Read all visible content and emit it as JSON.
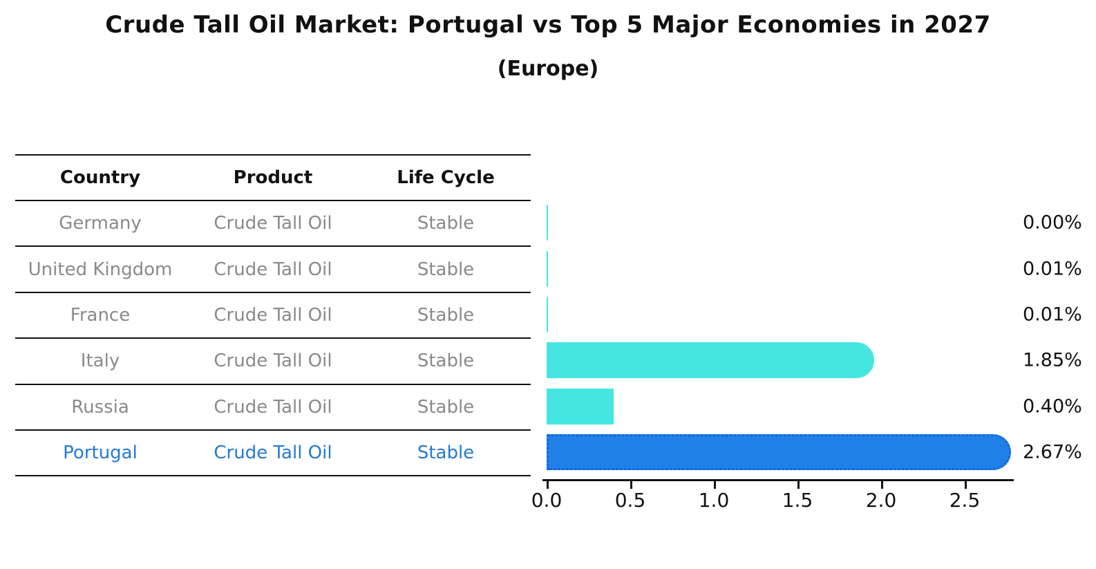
{
  "title": "Crude Tall Oil Market: Portugal vs Top 5 Major Economies in 2027",
  "subtitle": "(Europe)",
  "table": {
    "headers": [
      "Country",
      "Product",
      "Life Cycle"
    ],
    "rows": [
      {
        "country": "Germany",
        "product": "Crude Tall Oil",
        "life_cycle": "Stable",
        "highlighted": false
      },
      {
        "country": "United Kingdom",
        "product": "Crude Tall Oil",
        "life_cycle": "Stable",
        "highlighted": false
      },
      {
        "country": "France",
        "product": "Crude Tall Oil",
        "life_cycle": "Stable",
        "highlighted": false
      },
      {
        "country": "Italy",
        "product": "Crude Tall Oil",
        "life_cycle": "Stable",
        "highlighted": false
      },
      {
        "country": "Russia",
        "product": "Crude Tall Oil",
        "life_cycle": "Stable",
        "highlighted": false
      },
      {
        "country": "Portugal",
        "product": "Crude Tall Oil",
        "life_cycle": "Stable",
        "highlighted": true
      }
    ]
  },
  "chart_data": {
    "type": "bar",
    "orientation": "horizontal",
    "title": "Crude Tall Oil Market: Portugal vs Top 5 Major Economies in 2027",
    "subtitle": "(Europe)",
    "categories": [
      "Germany",
      "United Kingdom",
      "France",
      "Italy",
      "Russia",
      "Portugal"
    ],
    "values": [
      0.0,
      0.01,
      0.01,
      1.85,
      0.4,
      2.67
    ],
    "value_labels": [
      "0.00%",
      "0.01%",
      "0.01%",
      "1.85%",
      "0.40%",
      "2.67%"
    ],
    "unit": "%",
    "xlabel": "",
    "ylabel": "",
    "xlim": [
      0.0,
      2.8
    ],
    "x_tick_values": [
      0.0,
      0.5,
      1.0,
      1.5,
      2.0,
      2.5
    ],
    "x_tick_labels": [
      "0.0",
      "0.5",
      "1.0",
      "1.5",
      "2.0",
      "2.5"
    ],
    "grid": false,
    "legend": false,
    "highlight_index": 5,
    "colors": {
      "bar_default": "#45e6e2",
      "bar_highlight": "#1f80e8",
      "bar_highlight_border": "#1166dd",
      "highlight_text": "#2579d9",
      "table_text": "#8a8a8a",
      "heading_text": "#111111"
    }
  }
}
